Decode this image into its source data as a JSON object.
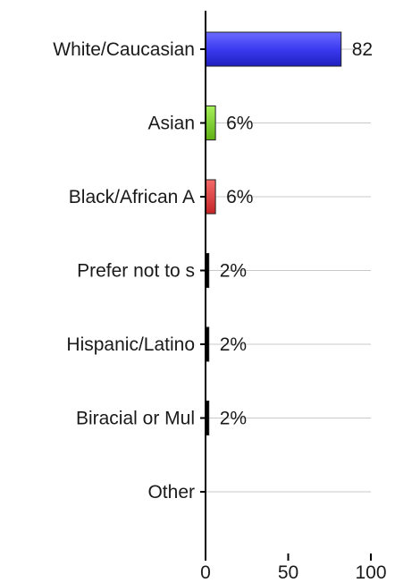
{
  "chart_data": {
    "type": "bar",
    "orientation": "horizontal",
    "categories": [
      "White/Caucasian",
      "Asian",
      "Black/African A",
      "Prefer not to s",
      "Hispanic/Latino",
      "Biracial or Mul",
      "Other"
    ],
    "values": [
      82,
      6,
      6,
      2,
      2,
      2,
      0
    ],
    "value_labels": [
      "82",
      "6%",
      "6%",
      "2%",
      "2%",
      "2%",
      ""
    ],
    "bar_colors": [
      "#3b3bf0",
      "#7ed321",
      "#e53b3b",
      "#000000",
      "#000000",
      "#000000",
      "#000000"
    ],
    "x_ticks": [
      "0",
      "50",
      "100"
    ],
    "xlim": [
      0,
      100
    ],
    "grid": true,
    "title": "",
    "xlabel": "",
    "ylabel": ""
  }
}
